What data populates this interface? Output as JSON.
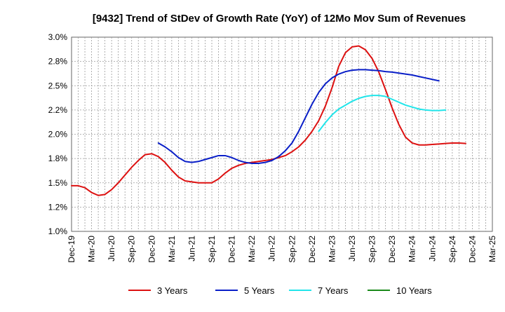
{
  "chart_data": {
    "type": "line",
    "title": "[9432]  Trend of StDev of Growth Rate (YoY) of 12Mo Mov Sum of Revenues",
    "xlabel": "",
    "ylabel": "",
    "ylim": [
      1.0,
      3.0
    ],
    "y_ticks": [
      1.0,
      1.25,
      1.5,
      1.75,
      2.0,
      2.25,
      2.5,
      2.75,
      3.0
    ],
    "y_tick_labels": [
      "1.0%",
      "1.2%",
      "1.5%",
      "1.8%",
      "2.0%",
      "2.2%",
      "2.5%",
      "2.8%",
      "3.0%"
    ],
    "x_tick_labels": [
      "Dec-19",
      "Mar-20",
      "Jun-20",
      "Sep-20",
      "Dec-20",
      "Mar-21",
      "Jun-21",
      "Sep-21",
      "Dec-21",
      "Mar-22",
      "Jun-22",
      "Sep-22",
      "Dec-22",
      "Mar-23",
      "Jun-23",
      "Sep-23",
      "Dec-23",
      "Mar-24",
      "Jun-24",
      "Sep-24",
      "Dec-24",
      "Mar-25"
    ],
    "grid": true,
    "legend_position": "bottom",
    "series": [
      {
        "name": "3 Years",
        "color": "#dd1111",
        "start_index": 0,
        "values": [
          1.47,
          1.47,
          1.45,
          1.4,
          1.37,
          1.38,
          1.43,
          1.5,
          1.58,
          1.66,
          1.73,
          1.79,
          1.8,
          1.77,
          1.71,
          1.63,
          1.56,
          1.52,
          1.51,
          1.5,
          1.5,
          1.5,
          1.54,
          1.6,
          1.65,
          1.68,
          1.7,
          1.71,
          1.72,
          1.73,
          1.74,
          1.76,
          1.78,
          1.82,
          1.87,
          1.94,
          2.03,
          2.14,
          2.29,
          2.48,
          2.7,
          2.84,
          2.9,
          2.91,
          2.87,
          2.78,
          2.64,
          2.46,
          2.27,
          2.1,
          1.97,
          1.91,
          1.89,
          1.89,
          1.895,
          1.9,
          1.905,
          1.91,
          1.91,
          1.905
        ]
      },
      {
        "name": "5 Years",
        "color": "#0a1fc8",
        "start_index": 13,
        "values": [
          1.91,
          1.87,
          1.82,
          1.76,
          1.72,
          1.71,
          1.72,
          1.74,
          1.76,
          1.78,
          1.78,
          1.76,
          1.73,
          1.71,
          1.7,
          1.7,
          1.71,
          1.73,
          1.77,
          1.83,
          1.91,
          2.03,
          2.17,
          2.31,
          2.43,
          2.52,
          2.58,
          2.62,
          2.645,
          2.66,
          2.665,
          2.665,
          2.66,
          2.655,
          2.645,
          2.64,
          2.63,
          2.62,
          2.61,
          2.595,
          2.58,
          2.565,
          2.55
        ]
      },
      {
        "name": "7 Years",
        "color": "#22e5ea",
        "start_index": 37,
        "values": [
          2.03,
          2.12,
          2.2,
          2.26,
          2.3,
          2.34,
          2.37,
          2.39,
          2.4,
          2.4,
          2.39,
          2.36,
          2.33,
          2.3,
          2.28,
          2.26,
          2.25,
          2.245,
          2.245,
          2.25
        ]
      },
      {
        "name": "10 Years",
        "color": "#1a8a1a",
        "start_index": 0,
        "values": []
      }
    ]
  }
}
